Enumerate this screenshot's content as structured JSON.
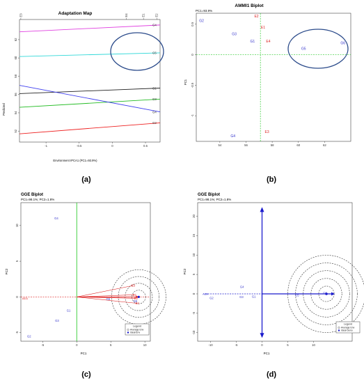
{
  "panels": {
    "a": {
      "caption": "(a)"
    },
    "b": {
      "caption": "(b)"
    },
    "c": {
      "caption": "(c)"
    },
    "d": {
      "caption": "(d)"
    }
  },
  "chart_data": [
    {
      "id": "a",
      "type": "line",
      "title": "Adaptation Map",
      "xlabel": "Environment IPCA1 (PC1=93.9%)",
      "ylabel": "Predicted",
      "xlim": [
        -1.4,
        0.72
      ],
      "ylim": [
        50.8,
        64.2
      ],
      "xticks": [
        -1.0,
        -0.5,
        0.0,
        0.5
      ],
      "yticks": [
        52,
        54,
        56,
        58,
        60,
        62
      ],
      "top_labels": [
        {
          "label": "E3",
          "x": -1.38
        },
        {
          "label": "E4",
          "x": 0.21
        },
        {
          "label": "E1",
          "x": 0.47
        },
        {
          "label": "E2",
          "x": 0.67
        }
      ],
      "series": [
        {
          "name": "G4",
          "color": "#e040e0",
          "x": [
            -1.4,
            0.72
          ],
          "y": [
            62.85,
            63.6
          ]
        },
        {
          "name": "G5",
          "color": "#30d8d8",
          "x": [
            -1.4,
            0.72
          ],
          "y": [
            60.15,
            60.55
          ]
        },
        {
          "name": "G1",
          "color": "#222222",
          "x": [
            -1.4,
            0.72
          ],
          "y": [
            56.1,
            56.7
          ]
        },
        {
          "name": "G3",
          "color": "#22bb22",
          "x": [
            -1.4,
            0.72
          ],
          "y": [
            54.6,
            55.5
          ]
        },
        {
          "name": "G4",
          "color": "#4040ee",
          "x": [
            -1.4,
            0.72
          ],
          "y": [
            57.0,
            54.1
          ]
        },
        {
          "name": "G2",
          "color": "#ee2222",
          "x": [
            -1.4,
            0.72
          ],
          "y": [
            51.7,
            52.9
          ]
        }
      ],
      "highlight": "ellipse"
    },
    {
      "id": "b",
      "type": "scatter",
      "title": "AMMI1 Biplot",
      "subtitle": "PC1=93.9%",
      "xlabel": "",
      "ylabel": "PC1",
      "xlim": [
        52.2,
        64.0
      ],
      "ylim": [
        -1.42,
        0.68
      ],
      "xticks": [
        54,
        56,
        58,
        60,
        62
      ],
      "yticks": [
        -1.0,
        -0.5,
        0.0,
        0.5
      ],
      "ref_lines": {
        "x": 57.1,
        "y": 0.0
      },
      "points": [
        {
          "label": "G2",
          "x": 52.6,
          "y": 0.56,
          "group": "genotype"
        },
        {
          "label": "G3",
          "x": 55.1,
          "y": 0.34,
          "group": "genotype"
        },
        {
          "label": "G1",
          "x": 56.5,
          "y": 0.22,
          "group": "genotype"
        },
        {
          "label": "G5",
          "x": 60.4,
          "y": 0.1,
          "group": "genotype"
        },
        {
          "label": "G6",
          "x": 63.4,
          "y": 0.19,
          "group": "genotype"
        },
        {
          "label": "G4",
          "x": 55.0,
          "y": -1.33,
          "group": "genotype"
        },
        {
          "label": "E2",
          "x": 56.8,
          "y": 0.63,
          "group": "environment"
        },
        {
          "label": "E1",
          "x": 57.3,
          "y": 0.45,
          "group": "environment"
        },
        {
          "label": "E4",
          "x": 57.7,
          "y": 0.22,
          "group": "environment"
        },
        {
          "label": "E3",
          "x": 57.6,
          "y": -1.26,
          "group": "environment"
        }
      ],
      "colors": {
        "genotype": "#3333cc",
        "environment": "#dd2222",
        "reference": "#33cc33"
      },
      "highlight": "ellipse"
    },
    {
      "id": "c",
      "type": "scatter",
      "title": "GGE Biplot",
      "subtitle": "PC1=98.1%; PC2=1.8%",
      "xlabel": "PC1",
      "ylabel": "PC2",
      "xlim": [
        -8.2,
        10.8
      ],
      "ylim": [
        -6.2,
        13.2
      ],
      "xticks": [
        -5,
        0,
        5,
        10
      ],
      "yticks": [
        -5,
        0,
        5,
        10
      ],
      "ref_lines": {
        "x": 0,
        "y": 0
      },
      "points": [
        {
          "label": "G4",
          "x": -3.0,
          "y": 11.0,
          "group": "genotype"
        },
        {
          "label": "G1",
          "x": -1.2,
          "y": -1.9,
          "group": "genotype"
        },
        {
          "label": "G3",
          "x": -2.9,
          "y": -3.3,
          "group": "genotype"
        },
        {
          "label": "G2",
          "x": -7.0,
          "y": -5.5,
          "group": "genotype"
        },
        {
          "label": "G5",
          "x": 4.6,
          "y": -0.3,
          "group": "genotype"
        },
        {
          "label": "G6",
          "x": 8.6,
          "y": -0.6,
          "group": "genotype"
        },
        {
          "label": "E1",
          "x": 8.5,
          "y": 0.3,
          "group": "environment"
        },
        {
          "label": "E2",
          "x": 8.7,
          "y": -0.2,
          "group": "environment"
        },
        {
          "label": "E3",
          "x": 8.3,
          "y": 1.6,
          "group": "environment"
        },
        {
          "label": "E4",
          "x": 8.9,
          "y": -0.9,
          "group": "environment"
        }
      ],
      "aea": {
        "label": "AEA",
        "x": -7.6,
        "y": -0.2
      },
      "ideal": {
        "x": 9.1,
        "y": 0.0
      },
      "circle_radii": [
        1.0,
        2.0,
        3.0,
        4.0
      ],
      "legend": {
        "title": "Legend",
        "items": [
          "Average Env",
          "Ideal Env"
        ]
      },
      "colors": {
        "genotype": "#3333cc",
        "environment": "#dd2222",
        "reference": "#33cc33",
        "ideal": "#1a1acc"
      }
    },
    {
      "id": "d",
      "type": "scatter",
      "title": "GGE Biplot",
      "subtitle": "PC1=98.1%; PC2=1.8%",
      "xlabel": "PC1",
      "ylabel": "PC2",
      "xlim": [
        -12.5,
        17.5
      ],
      "ylim": [
        -12.2,
        23.5
      ],
      "xticks": [
        -10,
        -5,
        0,
        5,
        10
      ],
      "yticks": [
        -10,
        -5,
        0,
        5,
        10,
        15,
        20
      ],
      "points": [
        {
          "label": "G4",
          "x": -3.9,
          "y": 1.8,
          "group": "genotype"
        },
        {
          "label": "G3",
          "x": -4.0,
          "y": -0.8,
          "group": "genotype"
        },
        {
          "label": "G1",
          "x": -1.6,
          "y": -0.7,
          "group": "genotype"
        },
        {
          "label": "G2",
          "x": -9.8,
          "y": -1.1,
          "group": "genotype"
        },
        {
          "label": "G5",
          "x": 6.8,
          "y": -0.3,
          "group": "genotype"
        },
        {
          "label": "G6",
          "x": 12.2,
          "y": 0.2,
          "group": "genotype"
        }
      ],
      "aea": {
        "label": "AEA",
        "x": -11.0,
        "y": 0.0
      },
      "ideal": {
        "x": 12.5,
        "y": 0.0
      },
      "circle_radii": [
        1.5,
        3.0,
        4.5,
        6.0,
        7.5
      ],
      "legend": {
        "title": "Legend",
        "items": [
          "Average Env",
          "Ideal Geno"
        ]
      },
      "colors": {
        "genotype": "#3333cc",
        "axis": "#1a1acc",
        "ideal": "#1a1acc"
      }
    }
  ]
}
